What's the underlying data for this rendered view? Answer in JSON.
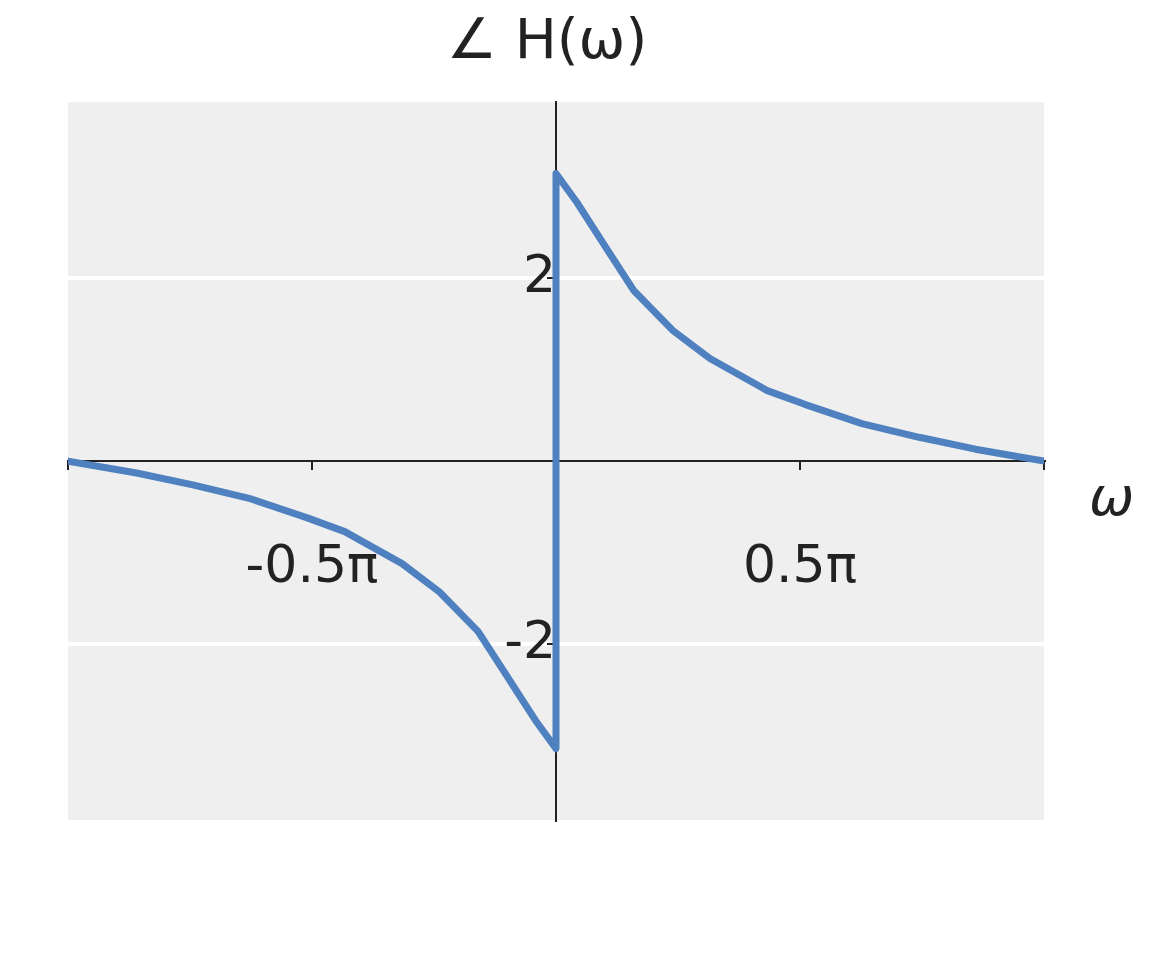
{
  "chart_data": {
    "type": "line",
    "title": "∠ H(ω)",
    "xlabel": "ω",
    "x": [
      -3.1416,
      -2.7,
      -2.338,
      -1.969,
      -1.601,
      -1.36,
      -0.991,
      -0.75,
      -0.502,
      -0.33,
      -0.133,
      0,
      0,
      0.133,
      0.33,
      0.502,
      0.75,
      0.991,
      1.36,
      1.601,
      1.969,
      2.338,
      2.7,
      3.1416
    ],
    "series": [
      {
        "color": "#4f81c0",
        "values": [
          0,
          -0.13,
          -0.26,
          -0.41,
          -0.62,
          -0.77,
          -1.12,
          -1.43,
          -1.86,
          -2.31,
          -2.83,
          -3.14,
          3.14,
          2.83,
          2.31,
          1.86,
          1.43,
          1.12,
          0.77,
          0.62,
          0.41,
          0.26,
          0.13,
          0
        ]
      }
    ],
    "xlim": [
      -3.1416,
      3.1416
    ],
    "xticks": [
      {
        "value": -3.1416,
        "label": null
      },
      {
        "value": -1.5708,
        "label": "-0.5π"
      },
      {
        "value": 1.5708,
        "label": "0.5π"
      },
      {
        "value": 3.1416,
        "label": null
      }
    ],
    "ylim": [
      -3.92,
      3.92
    ],
    "yticks": [
      -2,
      2
    ],
    "grid": "y",
    "legend": false,
    "marker": "none",
    "line_style": "solid"
  }
}
